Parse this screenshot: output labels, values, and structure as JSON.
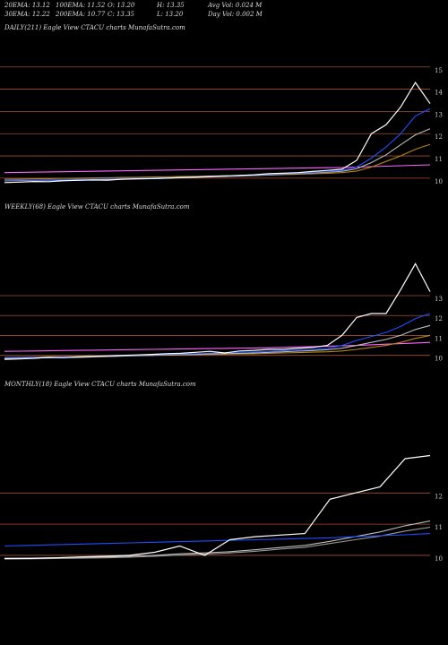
{
  "header": {
    "rows": [
      [
        "20EMA: 13.12",
        "100EMA: 11.52",
        "O: 13.20",
        "H: 13.35",
        "Avg Vol: 0.024  M"
      ],
      [
        "30EMA: 12.22",
        "200EMA: 10.77",
        "C: 13.35",
        "L: 13.20",
        "Day Vol: 0.002  M"
      ]
    ]
  },
  "chart_data": [
    {
      "type": "line",
      "title": "DAILY(211) Eagle  View  CTACU charts MunafaSutra.com",
      "ylim": [
        9.35,
        16.4
      ],
      "yticks": [
        10,
        11,
        12,
        13,
        14,
        15
      ],
      "grid": true,
      "series": [
        {
          "color": "#ff66ff",
          "values": [
            10.25,
            10.26,
            10.27,
            10.28,
            10.29,
            10.3,
            10.31,
            10.32,
            10.33,
            10.34,
            10.35,
            10.36,
            10.37,
            10.38,
            10.39,
            10.4,
            10.41,
            10.42,
            10.43,
            10.44,
            10.45,
            10.46,
            10.47,
            10.48,
            10.5,
            10.52,
            10.54,
            10.56,
            10.58,
            10.6
          ]
        },
        {
          "color": "#b8860b",
          "values": [
            9.95,
            9.96,
            9.97,
            9.98,
            9.99,
            10.0,
            10.01,
            10.02,
            10.03,
            10.04,
            10.05,
            10.06,
            10.07,
            10.08,
            10.09,
            10.1,
            10.11,
            10.12,
            10.14,
            10.16,
            10.18,
            10.2,
            10.22,
            10.25,
            10.32,
            10.5,
            10.75,
            11.0,
            11.3,
            11.52
          ]
        },
        {
          "color": "#bbbbbb",
          "values": [
            9.88,
            9.89,
            9.9,
            9.91,
            9.92,
            9.93,
            9.94,
            9.95,
            9.96,
            9.97,
            9.98,
            10.0,
            10.02,
            10.04,
            10.06,
            10.08,
            10.1,
            10.12,
            10.15,
            10.18,
            10.21,
            10.24,
            10.27,
            10.31,
            10.42,
            10.7,
            11.05,
            11.5,
            11.95,
            12.22
          ]
        },
        {
          "color": "#1f4fff",
          "values": [
            9.9,
            9.91,
            9.92,
            9.93,
            9.94,
            9.95,
            9.96,
            9.97,
            9.98,
            9.99,
            10.0,
            10.02,
            10.04,
            10.06,
            10.08,
            10.1,
            10.12,
            10.14,
            10.17,
            10.2,
            10.23,
            10.26,
            10.3,
            10.35,
            10.5,
            10.9,
            11.4,
            12.0,
            12.8,
            13.12
          ]
        },
        {
          "color": "#ffffff",
          "values": [
            9.8,
            9.82,
            9.85,
            9.84,
            9.88,
            9.9,
            9.92,
            9.91,
            9.95,
            9.97,
            9.98,
            10.0,
            10.03,
            10.05,
            10.08,
            10.1,
            10.12,
            10.15,
            10.2,
            10.22,
            10.25,
            10.3,
            10.35,
            10.4,
            10.8,
            12.0,
            12.4,
            13.2,
            14.3,
            13.35
          ]
        }
      ]
    },
    {
      "type": "line",
      "title": "WEEKLY(68) Eagle  View  CTACU charts MunafaSutra.com",
      "ylim": [
        9.4,
        17.5
      ],
      "yticks": [
        10,
        11,
        12,
        13
      ],
      "grid": true,
      "series": [
        {
          "color": "#ff66ff",
          "values": [
            10.2,
            10.21,
            10.22,
            10.23,
            10.24,
            10.25,
            10.26,
            10.27,
            10.28,
            10.29,
            10.3,
            10.31,
            10.32,
            10.33,
            10.34,
            10.35,
            10.36,
            10.37,
            10.38,
            10.4,
            10.42,
            10.44,
            10.46,
            10.48,
            10.5,
            10.53,
            10.56,
            10.59,
            10.62,
            10.65
          ]
        },
        {
          "color": "#b8860b",
          "values": [
            9.9,
            9.91,
            9.92,
            9.93,
            9.94,
            9.95,
            9.96,
            9.97,
            9.98,
            9.99,
            10.0,
            10.01,
            10.02,
            10.03,
            10.05,
            10.06,
            10.07,
            10.08,
            10.1,
            10.12,
            10.14,
            10.16,
            10.18,
            10.22,
            10.3,
            10.4,
            10.5,
            10.65,
            10.85,
            11.0
          ]
        },
        {
          "color": "#bbbbbb",
          "values": [
            9.85,
            9.86,
            9.87,
            9.88,
            9.89,
            9.9,
            9.92,
            9.94,
            9.96,
            9.98,
            10.0,
            10.02,
            10.04,
            10.06,
            10.08,
            10.09,
            10.1,
            10.12,
            10.15,
            10.18,
            10.21,
            10.24,
            10.28,
            10.36,
            10.5,
            10.65,
            10.8,
            11.0,
            11.3,
            11.5
          ]
        },
        {
          "color": "#1f4fff",
          "values": [
            9.88,
            9.89,
            9.9,
            9.91,
            9.92,
            9.93,
            9.95,
            9.97,
            9.99,
            10.01,
            10.03,
            10.05,
            10.07,
            10.09,
            10.12,
            10.13,
            10.15,
            10.17,
            10.2,
            10.23,
            10.26,
            10.3,
            10.35,
            10.5,
            10.75,
            10.95,
            11.15,
            11.45,
            11.85,
            12.1
          ]
        },
        {
          "color": "#ffffff",
          "values": [
            9.8,
            9.82,
            9.85,
            9.9,
            9.88,
            9.92,
            9.95,
            9.97,
            10.0,
            10.02,
            10.05,
            10.08,
            10.1,
            10.15,
            10.2,
            10.12,
            10.22,
            10.25,
            10.3,
            10.3,
            10.35,
            10.4,
            10.5,
            11.0,
            11.9,
            12.1,
            12.1,
            13.3,
            14.6,
            13.2
          ]
        }
      ]
    },
    {
      "type": "line",
      "title": "MONTHLY(18) Eagle  View  CTACU charts MunafaSutra.com",
      "ylim": [
        7.7,
        15.6
      ],
      "yticks": [
        10,
        11,
        12
      ],
      "grid": true,
      "series": [
        {
          "color": "#bbbbbb",
          "values": [
            9.9,
            9.91,
            9.92,
            9.93,
            9.95,
            9.97,
            10.0,
            10.05,
            10.08,
            10.12,
            10.18,
            10.25,
            10.32,
            10.45,
            10.6,
            10.75,
            10.95,
            11.1
          ]
        },
        {
          "color": "#999999",
          "values": [
            9.88,
            9.89,
            9.9,
            9.91,
            9.92,
            9.94,
            9.97,
            10.01,
            10.04,
            10.08,
            10.13,
            10.2,
            10.26,
            10.38,
            10.5,
            10.62,
            10.78,
            10.9
          ]
        },
        {
          "color": "#1f4fff",
          "values": [
            10.3,
            10.32,
            10.34,
            10.36,
            10.38,
            10.4,
            10.42,
            10.44,
            10.46,
            10.48,
            10.5,
            10.52,
            10.54,
            10.56,
            10.6,
            10.63,
            10.66,
            10.7
          ]
        },
        {
          "color": "#ffffff",
          "values": [
            9.9,
            9.9,
            9.92,
            9.95,
            9.97,
            10.0,
            10.1,
            10.3,
            10.0,
            10.5,
            10.6,
            10.65,
            10.7,
            11.8,
            12.0,
            12.2,
            13.1,
            13.2
          ]
        }
      ]
    }
  ]
}
